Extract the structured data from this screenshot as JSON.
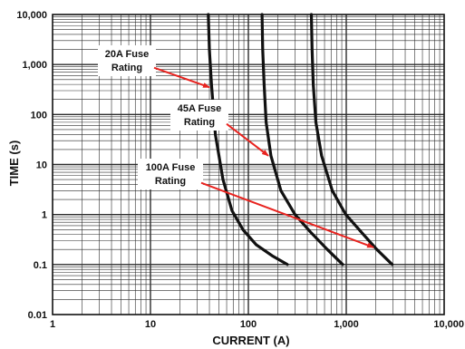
{
  "chart_data": {
    "type": "line",
    "xlabel": "CURRENT (A)",
    "ylabel": "TIME (s)",
    "x_scale": "log",
    "y_scale": "log",
    "xlim": [
      1,
      10000
    ],
    "ylim": [
      0.01,
      10000
    ],
    "x_tick_labels": [
      "1",
      "10",
      "100",
      "1,000",
      "10,000"
    ],
    "y_tick_labels": [
      "0.01",
      "0.1",
      "1",
      "10",
      "100",
      "1,000",
      "10,000"
    ],
    "grid": true,
    "series": [
      {
        "name": "20A Fuse Rating",
        "x": [
          39,
          40,
          42,
          46,
          55,
          68,
          88,
          120,
          175,
          250
        ],
        "y": [
          10000,
          2000,
          400,
          40,
          5,
          1.2,
          0.5,
          0.25,
          0.15,
          0.1
        ]
      },
      {
        "name": "45A Fuse Rating",
        "x": [
          138,
          140,
          145,
          152,
          170,
          215,
          300,
          430,
          640,
          920
        ],
        "y": [
          10000,
          2000,
          400,
          70,
          15,
          3,
          1,
          0.45,
          0.2,
          0.1
        ]
      },
      {
        "name": "100A Fuse Rating",
        "x": [
          440,
          448,
          460,
          490,
          560,
          720,
          990,
          1420,
          2050,
          2950
        ],
        "y": [
          10000,
          2000,
          400,
          70,
          15,
          3,
          1,
          0.45,
          0.2,
          0.1
        ]
      }
    ],
    "annotations": [
      {
        "lines": [
          "20A Fuse",
          "Rating"
        ],
        "arrow_to": [
          40,
          350
        ]
      },
      {
        "lines": [
          "45A Fuse",
          "Rating"
        ],
        "arrow_to": [
          160,
          15
        ]
      },
      {
        "lines": [
          "100A Fuse",
          "Rating"
        ],
        "arrow_to": [
          1900,
          0.22
        ]
      }
    ]
  }
}
